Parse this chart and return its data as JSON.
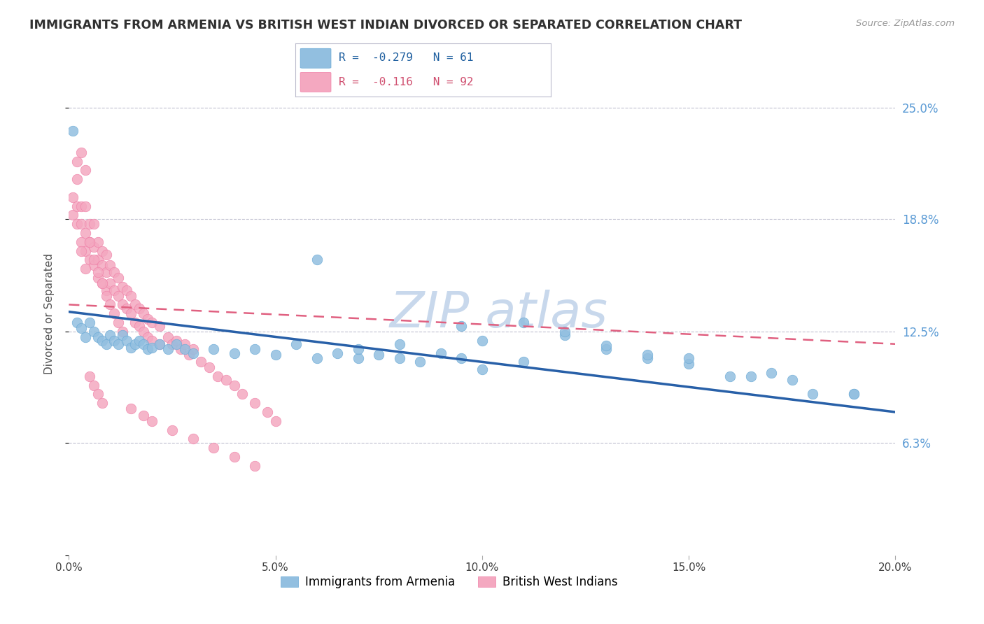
{
  "title": "IMMIGRANTS FROM ARMENIA VS BRITISH WEST INDIAN DIVORCED OR SEPARATED CORRELATION CHART",
  "source": "Source: ZipAtlas.com",
  "ylabel_label": "Divorced or Separated",
  "xlim": [
    0.0,
    0.2
  ],
  "ylim": [
    0.0,
    0.27
  ],
  "xtick_vals": [
    0.0,
    0.05,
    0.1,
    0.15,
    0.2
  ],
  "xtick_labels": [
    "0.0%",
    "5.0%",
    "10.0%",
    "15.0%",
    "20.0%"
  ],
  "ytick_vals": [
    0.0,
    0.063,
    0.125,
    0.188,
    0.25
  ],
  "ytick_labels": [
    "",
    "6.3%",
    "12.5%",
    "18.8%",
    "25.0%"
  ],
  "legend_r1": "R =  -0.279   N = 61",
  "legend_r2": "R =  -0.116   N = 92",
  "legend_label1": "Immigrants from Armenia",
  "legend_label2": "British West Indians",
  "blue_color": "#92bfe0",
  "pink_color": "#f4a8c0",
  "blue_edge": "#6aaad6",
  "pink_edge": "#f080a8",
  "blue_line_color": "#2860a8",
  "pink_line_color": "#e06080",
  "background_color": "#ffffff",
  "grid_color": "#c0c0d0",
  "title_color": "#303030",
  "axis_label_color": "#505050",
  "right_tick_color": "#5b9bd5",
  "watermark_color": "#c8d8ec",
  "blue_scatter_x": [
    0.001,
    0.002,
    0.003,
    0.004,
    0.005,
    0.006,
    0.007,
    0.008,
    0.009,
    0.01,
    0.011,
    0.012,
    0.013,
    0.014,
    0.015,
    0.016,
    0.017,
    0.018,
    0.019,
    0.02,
    0.022,
    0.024,
    0.026,
    0.028,
    0.03,
    0.035,
    0.04,
    0.045,
    0.05,
    0.055,
    0.06,
    0.065,
    0.07,
    0.075,
    0.08,
    0.085,
    0.09,
    0.095,
    0.1,
    0.11,
    0.12,
    0.13,
    0.14,
    0.15,
    0.16,
    0.17,
    0.18,
    0.19,
    0.06,
    0.07,
    0.08,
    0.095,
    0.1,
    0.11,
    0.12,
    0.13,
    0.14,
    0.15,
    0.165,
    0.175,
    0.19
  ],
  "blue_scatter_y": [
    0.237,
    0.13,
    0.127,
    0.122,
    0.13,
    0.125,
    0.122,
    0.12,
    0.118,
    0.123,
    0.12,
    0.118,
    0.123,
    0.12,
    0.116,
    0.118,
    0.12,
    0.118,
    0.115,
    0.116,
    0.118,
    0.115,
    0.118,
    0.115,
    0.113,
    0.115,
    0.113,
    0.115,
    0.112,
    0.118,
    0.11,
    0.113,
    0.11,
    0.112,
    0.11,
    0.108,
    0.113,
    0.11,
    0.104,
    0.108,
    0.123,
    0.115,
    0.11,
    0.107,
    0.1,
    0.102,
    0.09,
    0.09,
    0.165,
    0.115,
    0.118,
    0.128,
    0.12,
    0.13,
    0.125,
    0.117,
    0.112,
    0.11,
    0.1,
    0.098,
    0.09
  ],
  "pink_scatter_x": [
    0.001,
    0.001,
    0.002,
    0.002,
    0.002,
    0.003,
    0.003,
    0.003,
    0.004,
    0.004,
    0.004,
    0.005,
    0.005,
    0.005,
    0.006,
    0.006,
    0.006,
    0.007,
    0.007,
    0.007,
    0.008,
    0.008,
    0.008,
    0.009,
    0.009,
    0.009,
    0.01,
    0.01,
    0.011,
    0.011,
    0.012,
    0.012,
    0.013,
    0.013,
    0.014,
    0.014,
    0.015,
    0.015,
    0.016,
    0.016,
    0.017,
    0.017,
    0.018,
    0.018,
    0.019,
    0.019,
    0.02,
    0.02,
    0.022,
    0.022,
    0.024,
    0.025,
    0.026,
    0.027,
    0.028,
    0.029,
    0.03,
    0.032,
    0.034,
    0.036,
    0.038,
    0.04,
    0.042,
    0.045,
    0.048,
    0.05,
    0.002,
    0.003,
    0.004,
    0.005,
    0.006,
    0.007,
    0.008,
    0.003,
    0.004,
    0.005,
    0.006,
    0.007,
    0.008,
    0.009,
    0.01,
    0.011,
    0.012,
    0.013,
    0.015,
    0.018,
    0.02,
    0.025,
    0.03,
    0.035,
    0.04,
    0.045
  ],
  "pink_scatter_y": [
    0.2,
    0.19,
    0.21,
    0.195,
    0.185,
    0.195,
    0.185,
    0.175,
    0.195,
    0.18,
    0.17,
    0.185,
    0.175,
    0.165,
    0.185,
    0.172,
    0.162,
    0.175,
    0.165,
    0.155,
    0.17,
    0.162,
    0.152,
    0.168,
    0.158,
    0.148,
    0.162,
    0.152,
    0.158,
    0.148,
    0.155,
    0.145,
    0.15,
    0.14,
    0.148,
    0.138,
    0.145,
    0.135,
    0.14,
    0.13,
    0.138,
    0.128,
    0.135,
    0.125,
    0.132,
    0.122,
    0.13,
    0.12,
    0.128,
    0.118,
    0.122,
    0.118,
    0.12,
    0.115,
    0.118,
    0.112,
    0.115,
    0.108,
    0.105,
    0.1,
    0.098,
    0.095,
    0.09,
    0.085,
    0.08,
    0.075,
    0.22,
    0.225,
    0.215,
    0.1,
    0.095,
    0.09,
    0.085,
    0.17,
    0.16,
    0.175,
    0.165,
    0.158,
    0.152,
    0.145,
    0.14,
    0.135,
    0.13,
    0.125,
    0.082,
    0.078,
    0.075,
    0.07,
    0.065,
    0.06,
    0.055,
    0.05
  ],
  "blue_trend_x": [
    0.0,
    0.2
  ],
  "blue_trend_y": [
    0.136,
    0.08
  ],
  "pink_trend_x": [
    0.0,
    0.2
  ],
  "pink_trend_y": [
    0.14,
    0.118
  ]
}
